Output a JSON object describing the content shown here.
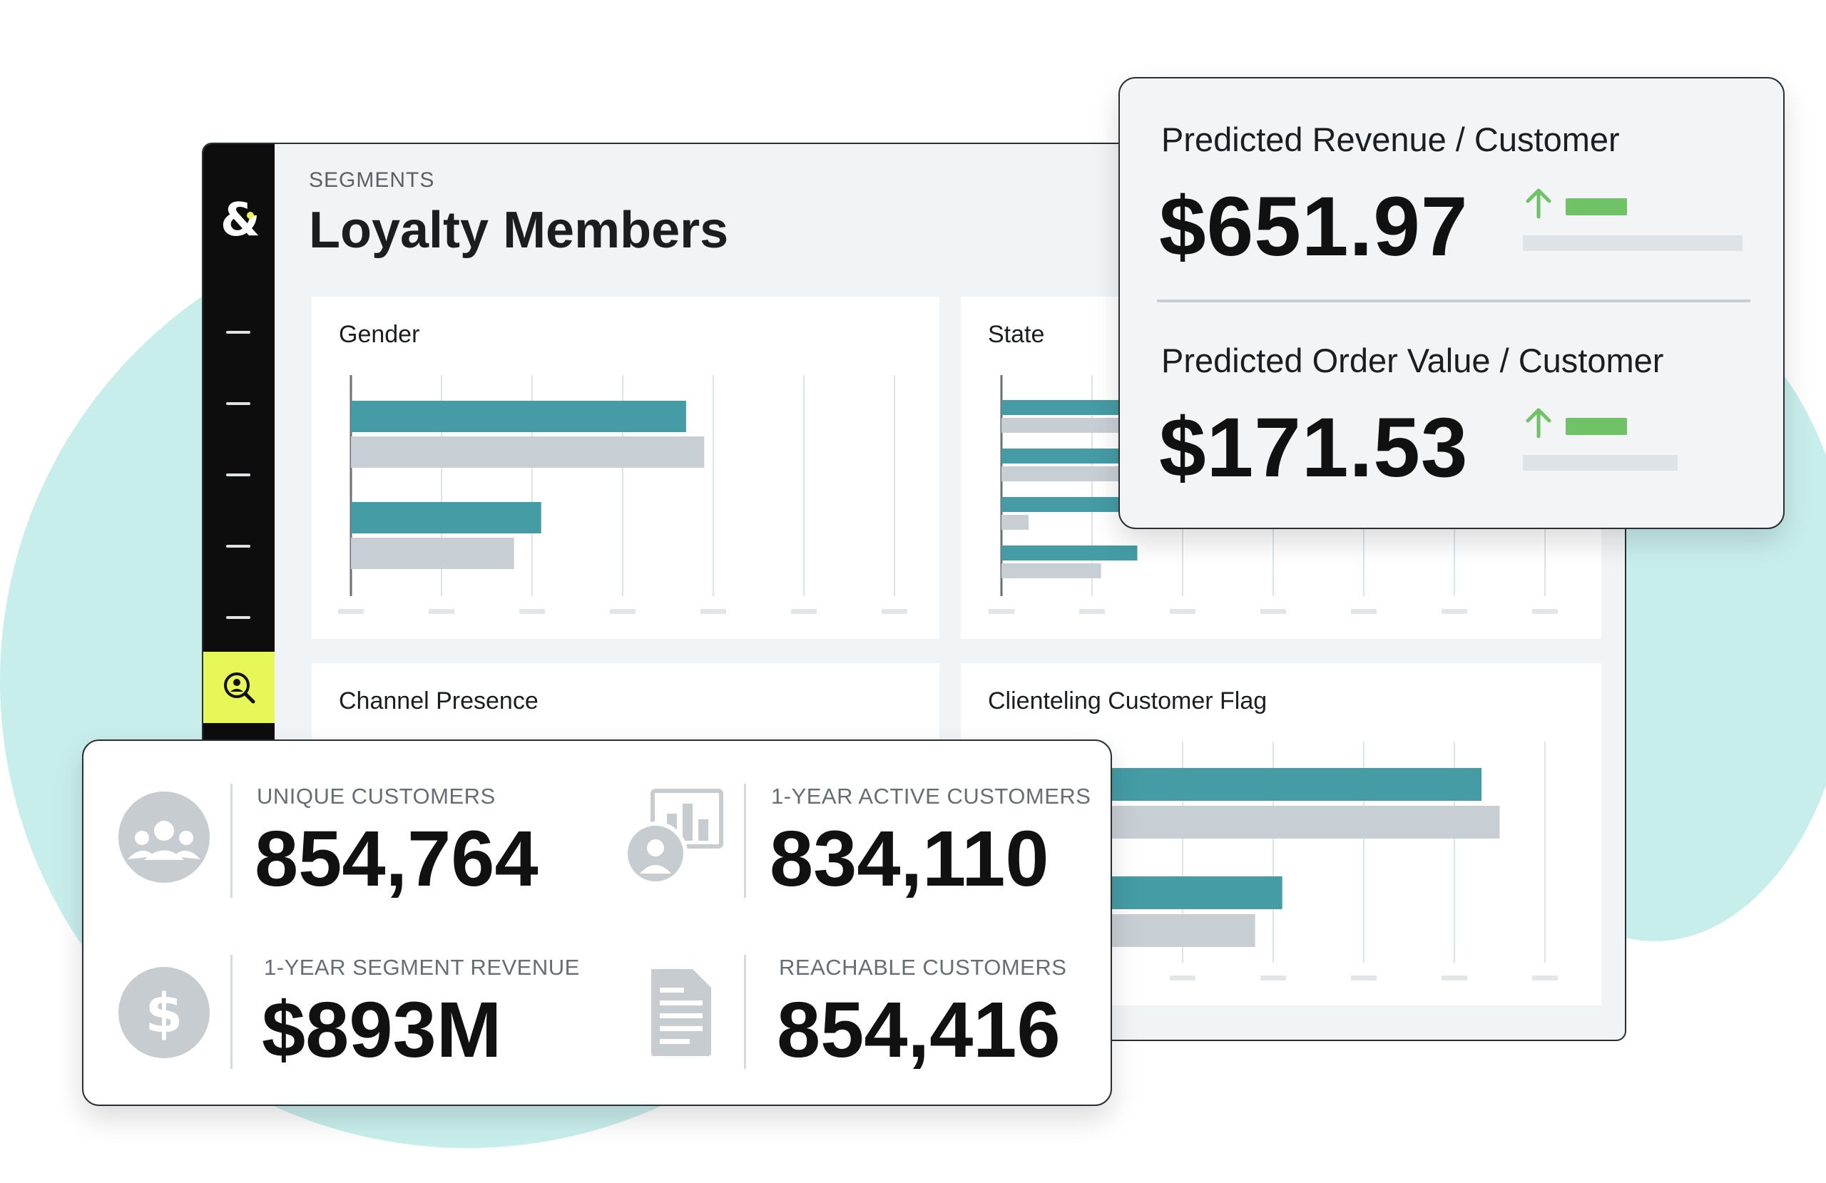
{
  "app": {
    "breadcrumb": "SEGMENTS",
    "title": "Loyalty Members",
    "brand_logo_icon": "ampersand-logo-icon",
    "nav_active_icon": "search-person-icon",
    "colors": {
      "rail": "#0d0d0d",
      "accent": "#e7f757",
      "teal": "#459ca5",
      "gray_bar": "#c8cfd4",
      "green": "#6fc266"
    }
  },
  "charts": {
    "gender": {
      "label": "Gender"
    },
    "state": {
      "label": "State"
    },
    "channel": {
      "label": "Channel Presence"
    },
    "clienteling": {
      "label": "Clienteling Customer Flag"
    }
  },
  "chart_data": [
    {
      "type": "bar",
      "orientation": "horizontal",
      "title": "Gender",
      "xlim": [
        0,
        6
      ],
      "series": [
        {
          "values": [
            3.7,
            2.1
          ]
        },
        {
          "values": [
            3.9,
            1.8
          ]
        }
      ]
    },
    {
      "type": "bar",
      "orientation": "horizontal",
      "title": "State",
      "xlim": [
        0,
        6
      ],
      "series": [
        {
          "values": [
            1.9,
            1.7,
            2.0,
            1.5
          ]
        },
        {
          "values": [
            1.8,
            1.3,
            0.3,
            1.1
          ]
        }
      ]
    },
    {
      "type": "bar",
      "orientation": "horizontal",
      "title": "Clienteling Customer Flag",
      "xlim": [
        0,
        6
      ],
      "series": [
        {
          "values": [
            5.3,
            3.1
          ]
        },
        {
          "values": [
            5.5,
            2.8
          ]
        }
      ]
    }
  ],
  "predictions": [
    {
      "label": "Predicted Revenue / Customer",
      "value": "$651.97",
      "trend": "up",
      "trend_icon": "arrow-up-icon",
      "level": 0.85
    },
    {
      "label": "Predicted Order Value / Customer",
      "value": "$171.53",
      "trend": "up",
      "trend_icon": "arrow-up-icon",
      "level": 0.6
    }
  ],
  "stats": [
    {
      "label": "UNIQUE CUSTOMERS",
      "value": "854,764",
      "icon": "group-icon"
    },
    {
      "label": "1-YEAR ACTIVE CUSTOMERS",
      "value": "834,110",
      "icon": "active-customer-chart-icon"
    },
    {
      "label": "1-YEAR SEGMENT REVENUE",
      "value": "$893M",
      "icon": "dollar-icon"
    },
    {
      "label": "REACHABLE CUSTOMERS",
      "value": "854,416",
      "icon": "document-icon"
    }
  ]
}
